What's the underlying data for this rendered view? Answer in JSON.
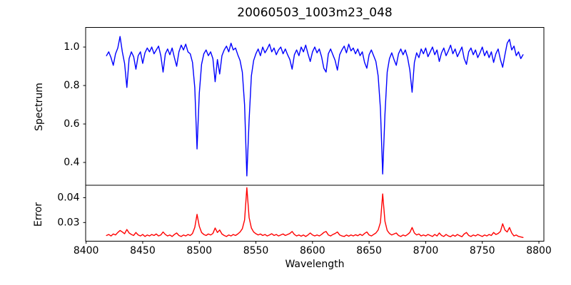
{
  "chart_data": [
    {
      "type": "line",
      "panel": "spectrum",
      "title": "20060503_1003m23_048",
      "ylabel": "Spectrum",
      "xlim": [
        8399.6,
        8804.4
      ],
      "ylim": [
        0.2815,
        1.102
      ],
      "grid": false,
      "legend": "none",
      "ytick_values": [
        1.0,
        0.8,
        0.6,
        0.4
      ],
      "ytick_labels": [
        "1.0",
        "0.8",
        "0.6",
        "0.4"
      ],
      "series": [
        {
          "name": "spectrum",
          "color": "#0000ff",
          "x_start": 8418,
          "x_step": 2,
          "values": [
            0.955,
            0.975,
            0.945,
            0.905,
            0.965,
            0.995,
            1.055,
            0.975,
            0.915,
            0.79,
            0.94,
            0.975,
            0.95,
            0.885,
            0.955,
            0.975,
            0.915,
            0.97,
            0.995,
            0.975,
            1.0,
            0.965,
            0.985,
            1.005,
            0.955,
            0.87,
            0.965,
            0.99,
            0.96,
            0.995,
            0.945,
            0.9,
            0.975,
            1.01,
            0.985,
            1.015,
            0.975,
            0.965,
            0.92,
            0.79,
            0.47,
            0.76,
            0.91,
            0.965,
            0.985,
            0.955,
            0.975,
            0.94,
            0.82,
            0.935,
            0.86,
            0.955,
            0.985,
            1.005,
            0.975,
            1.02,
            0.985,
            0.995,
            0.96,
            0.93,
            0.87,
            0.7,
            0.33,
            0.62,
            0.85,
            0.93,
            0.965,
            0.99,
            0.955,
            1.0,
            0.97,
            0.99,
            1.015,
            0.975,
            0.995,
            0.96,
            0.985,
            1.0,
            0.965,
            0.99,
            0.96,
            0.935,
            0.885,
            0.96,
            0.985,
            0.955,
            1.0,
            0.975,
            1.01,
            0.965,
            0.925,
            0.975,
            1.0,
            0.97,
            0.99,
            0.95,
            0.89,
            0.87,
            0.965,
            0.99,
            0.96,
            0.93,
            0.88,
            0.96,
            0.985,
            1.005,
            0.97,
            1.015,
            0.98,
            0.995,
            0.965,
            0.99,
            0.955,
            0.975,
            0.92,
            0.89,
            0.96,
            0.985,
            0.955,
            0.925,
            0.85,
            0.68,
            0.34,
            0.65,
            0.87,
            0.94,
            0.97,
            0.935,
            0.905,
            0.965,
            0.99,
            0.96,
            0.985,
            0.945,
            0.88,
            0.765,
            0.92,
            0.97,
            0.945,
            0.99,
            0.965,
            0.995,
            0.95,
            0.975,
            1.0,
            0.96,
            0.985,
            0.925,
            0.97,
            0.995,
            0.955,
            0.98,
            1.01,
            0.965,
            0.99,
            0.95,
            0.975,
            1.0,
            0.94,
            0.91,
            0.975,
            0.995,
            0.96,
            0.985,
            0.945,
            0.97,
            1.0,
            0.955,
            0.98,
            0.945,
            0.975,
            0.92,
            0.965,
            0.99,
            0.935,
            0.895,
            0.96,
            1.02,
            1.04,
            0.985,
            1.005,
            0.955,
            0.975,
            0.94,
            0.96
          ]
        }
      ]
    },
    {
      "type": "line",
      "panel": "error",
      "ylabel": "Error",
      "xlabel": "Wavelength",
      "xlim": [
        8399.6,
        8804.4
      ],
      "ylim": [
        0.0225,
        0.045
      ],
      "grid": false,
      "legend": "none",
      "ytick_values": [
        0.04,
        0.03
      ],
      "ytick_labels": [
        "0.04",
        "0.03"
      ],
      "xtick_values": [
        8400,
        8450,
        8500,
        8550,
        8600,
        8650,
        8700,
        8750,
        8800
      ],
      "xtick_labels": [
        "8400",
        "8450",
        "8500",
        "8550",
        "8600",
        "8650",
        "8700",
        "8750",
        "8800"
      ],
      "series": [
        {
          "name": "error",
          "color": "#ff0000",
          "x_start": 8418,
          "x_step": 2,
          "values": [
            0.0248,
            0.0252,
            0.0246,
            0.0254,
            0.025,
            0.026,
            0.0268,
            0.0262,
            0.0255,
            0.0272,
            0.0258,
            0.0252,
            0.0248,
            0.026,
            0.025,
            0.0246,
            0.0252,
            0.0244,
            0.025,
            0.0246,
            0.0252,
            0.0248,
            0.0254,
            0.0246,
            0.025,
            0.0262,
            0.0252,
            0.0246,
            0.025,
            0.0244,
            0.0252,
            0.0258,
            0.0248,
            0.0244,
            0.025,
            0.0246,
            0.0252,
            0.0248,
            0.0256,
            0.028,
            0.0333,
            0.0285,
            0.026,
            0.0252,
            0.0248,
            0.0254,
            0.025,
            0.0256,
            0.0278,
            0.026,
            0.027,
            0.0254,
            0.0248,
            0.0244,
            0.025,
            0.0246,
            0.0252,
            0.0248,
            0.0254,
            0.0262,
            0.0275,
            0.031,
            0.044,
            0.032,
            0.0278,
            0.0262,
            0.0255,
            0.025,
            0.0254,
            0.0248,
            0.0252,
            0.0246,
            0.025,
            0.0255,
            0.0248,
            0.0252,
            0.0246,
            0.025,
            0.0254,
            0.0248,
            0.0252,
            0.0256,
            0.0264,
            0.0252,
            0.0246,
            0.025,
            0.0245,
            0.025,
            0.0244,
            0.025,
            0.0258,
            0.025,
            0.0246,
            0.025,
            0.0246,
            0.0252,
            0.026,
            0.0264,
            0.025,
            0.0246,
            0.0252,
            0.0256,
            0.0262,
            0.025,
            0.0246,
            0.0244,
            0.025,
            0.0245,
            0.025,
            0.0246,
            0.0251,
            0.0247,
            0.0253,
            0.0248,
            0.0256,
            0.0262,
            0.025,
            0.0246,
            0.0252,
            0.0258,
            0.027,
            0.03,
            0.0415,
            0.0305,
            0.0268,
            0.0256,
            0.025,
            0.0254,
            0.0258,
            0.0248,
            0.0244,
            0.025,
            0.0246,
            0.0252,
            0.026,
            0.028,
            0.0258,
            0.025,
            0.0254,
            0.0246,
            0.025,
            0.0246,
            0.0252,
            0.0248,
            0.0244,
            0.0252,
            0.0246,
            0.0258,
            0.0248,
            0.0244,
            0.0252,
            0.0246,
            0.0243,
            0.025,
            0.0245,
            0.0252,
            0.0247,
            0.0243,
            0.0254,
            0.026,
            0.0248,
            0.0244,
            0.025,
            0.0246,
            0.0252,
            0.0248,
            0.0244,
            0.025,
            0.0246,
            0.0252,
            0.0248,
            0.026,
            0.0252,
            0.0256,
            0.0264,
            0.0295,
            0.027,
            0.0262,
            0.028,
            0.0258,
            0.0246,
            0.025,
            0.0244,
            0.0242,
            0.024
          ]
        }
      ]
    }
  ]
}
